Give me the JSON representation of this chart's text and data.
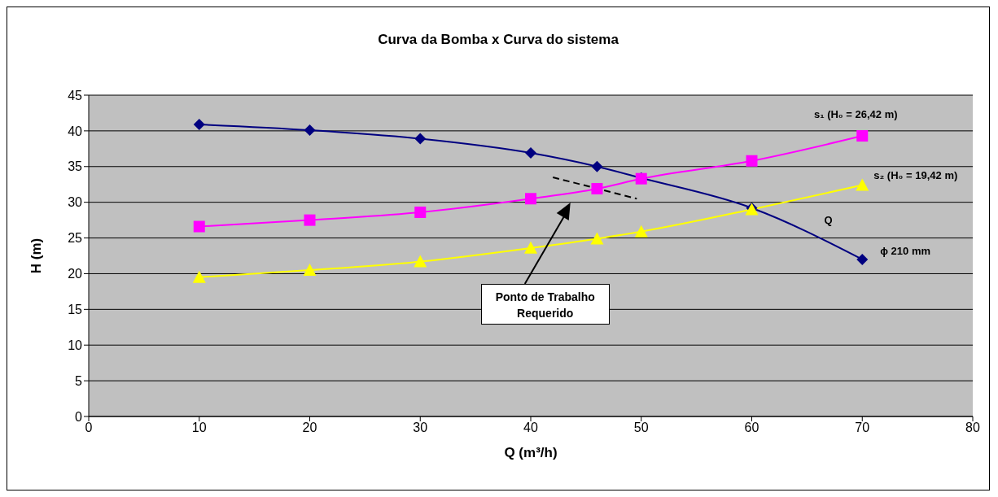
{
  "chart_data": {
    "type": "line",
    "title": "Curva da Bomba x Curva do sistema",
    "xlabel": "Q (m³/h)",
    "ylabel": "H (m)",
    "xlim": [
      0,
      80
    ],
    "xticks": [
      0,
      10,
      20,
      30,
      40,
      50,
      60,
      70,
      80
    ],
    "ylim": [
      0,
      45
    ],
    "yticks": [
      0,
      5,
      10,
      15,
      20,
      25,
      30,
      35,
      40,
      45
    ],
    "grid": "y",
    "legend": false,
    "series": [
      {
        "name": "ϕ 210 mm",
        "color": "#000080",
        "marker": "diamond",
        "x": [
          10,
          20,
          30,
          40,
          46,
          50,
          60,
          70
        ],
        "values": [
          40.9,
          40.1,
          38.9,
          36.9,
          35,
          33.4,
          29.2,
          22
        ]
      },
      {
        "name": "s₁ (H₀ = 26,42 m)",
        "color": "#ff00ff",
        "marker": "square",
        "x": [
          10,
          20,
          30,
          40,
          46,
          50,
          60,
          70
        ],
        "values": [
          26.6,
          27.5,
          28.6,
          30.5,
          31.9,
          33.3,
          35.8,
          39.3
        ]
      },
      {
        "name": "s₂ (H₀ = 19,42 m)",
        "color": "#ffff00",
        "marker": "triangle",
        "x": [
          10,
          20,
          30,
          40,
          46,
          50,
          60,
          70
        ],
        "values": [
          19.5,
          20.5,
          21.7,
          23.6,
          24.9,
          25.9,
          29,
          32.4
        ]
      },
      {
        "color": "#000000",
        "marker": "none",
        "line_style": "dashed",
        "x": [
          42,
          49.6
        ],
        "values": [
          33.5,
          30.5
        ]
      }
    ],
    "annotations": [
      "Q",
      "Ponto de Trabalho Requerido"
    ]
  }
}
